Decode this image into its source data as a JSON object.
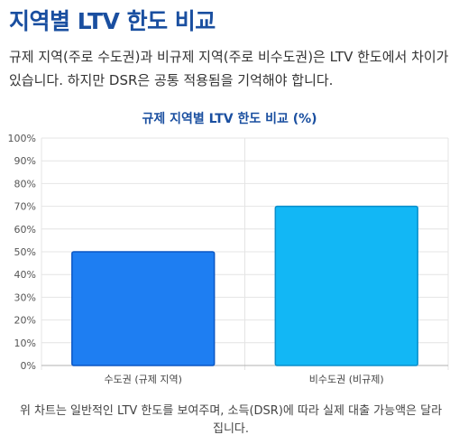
{
  "page": {
    "heading": "지역별 LTV 한도 비교",
    "intro": "규제 지역(주로 수도권)과 비규제 지역(주로 비수도권)은 LTV 한도에서 차이가 있습니다. 하지만 DSR은 공통 적용됨을 기억해야 합니다.",
    "footnote": "위 차트는 일반적인 LTV 한도를 보여주며, 소득(DSR)에 따라 실제 대출 가능액은 달라집니다."
  },
  "chart_data": {
    "type": "bar",
    "title": "규제 지역별 LTV 한도 비교 (%)",
    "categories": [
      "수도권 (규제 지역)",
      "비수도권 (비규제)"
    ],
    "values": [
      50,
      70
    ],
    "ylim": [
      0,
      100
    ],
    "ytick_step": 10,
    "ytick_suffix": "%",
    "grid": true,
    "colors": {
      "fills": [
        "#1e7ef2",
        "#12b7f5"
      ],
      "strokes": [
        "#0a56c4",
        "#0a8ecb"
      ],
      "grid": "#e4e4e4",
      "axis": "#b0b0b0"
    }
  }
}
